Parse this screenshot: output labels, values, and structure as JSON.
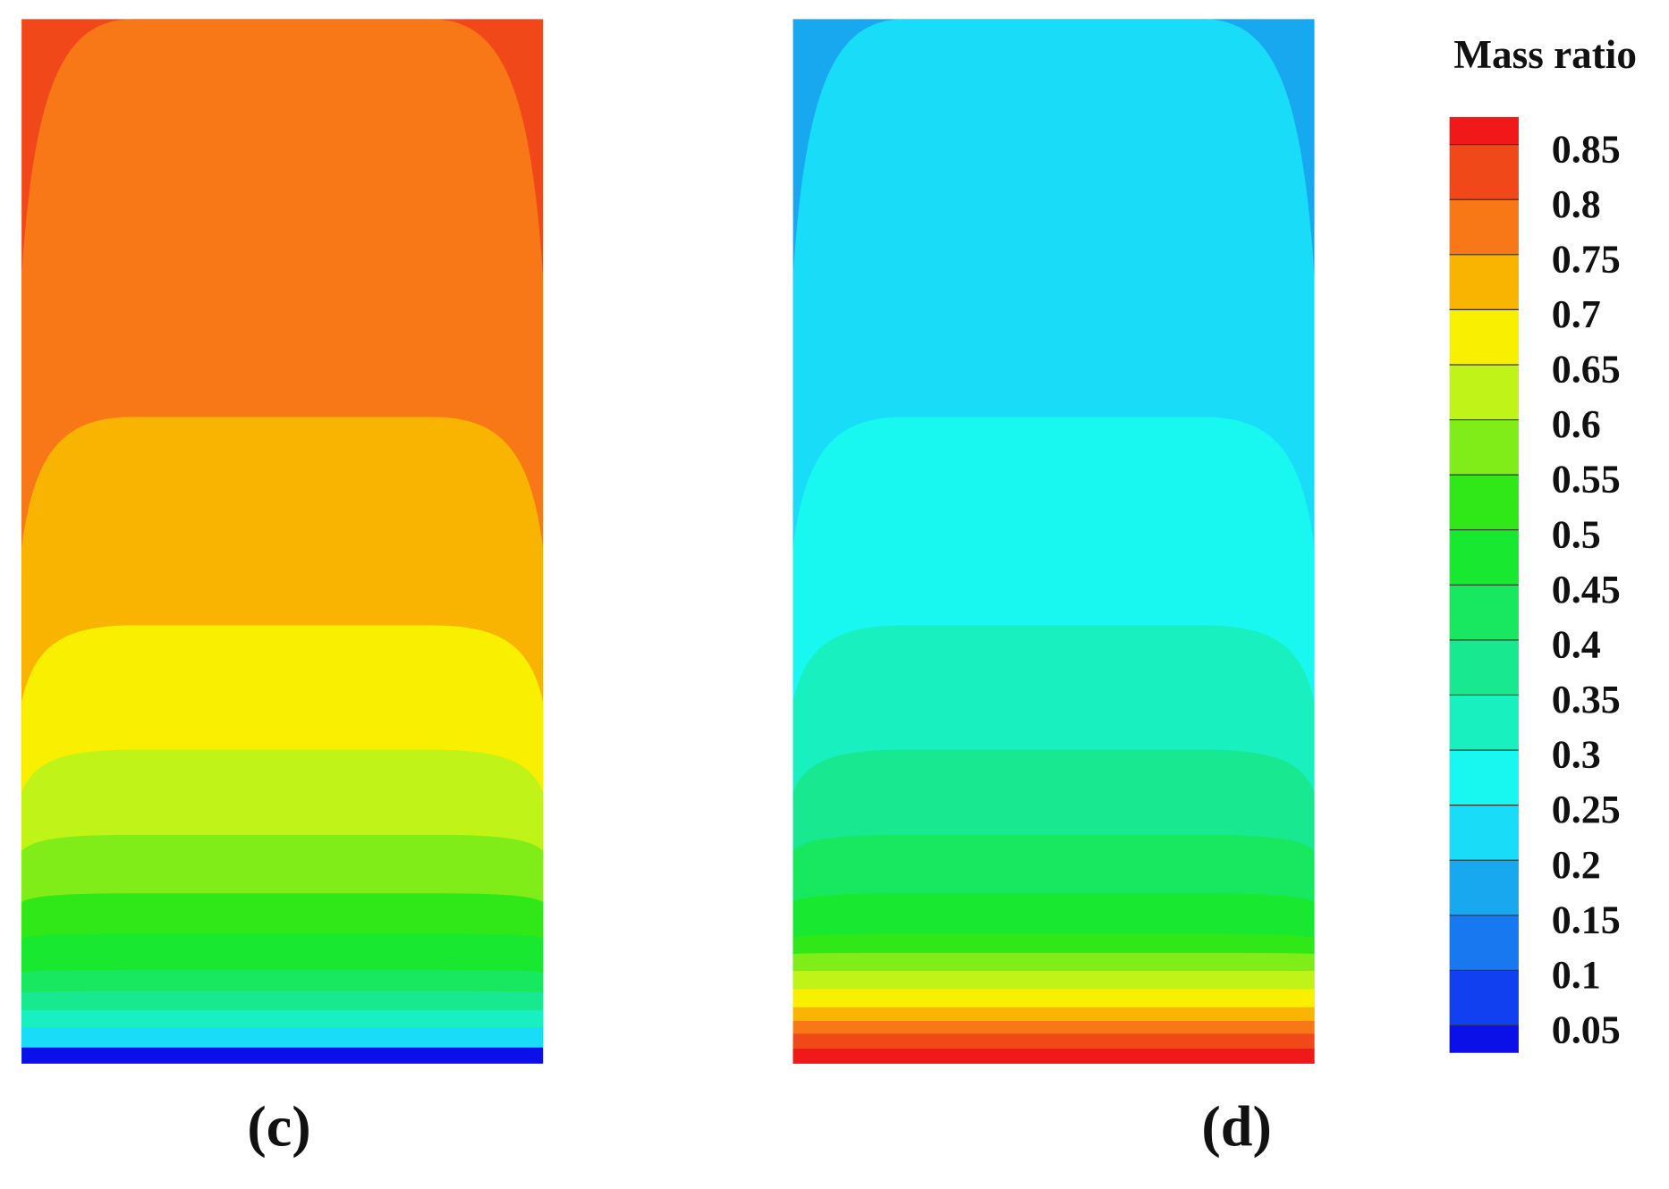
{
  "chart_data": [
    {
      "type": "contour",
      "label": "(c)",
      "levels": [
        0.8,
        0.75,
        0.7,
        0.65,
        0.6,
        0.55,
        0.5,
        0.45,
        0.4,
        0.35,
        0.3,
        0.2,
        0.025
      ]
    },
    {
      "type": "contour",
      "label": "(d)",
      "levels": [
        0.15,
        0.2,
        0.25,
        0.3,
        0.35,
        0.4,
        0.45,
        0.5,
        0.55,
        0.6,
        0.65,
        0.7,
        0.75,
        0.8,
        0.85
      ]
    }
  ],
  "colorbar": {
    "title": "Mass ratio",
    "clim": [
      0.025,
      0.875
    ],
    "ticks": [
      0.05,
      0.1,
      0.15,
      0.2,
      0.25,
      0.3,
      0.35,
      0.4,
      0.45,
      0.5,
      0.55,
      0.6,
      0.65,
      0.7,
      0.75,
      0.8,
      0.85
    ],
    "colors": [
      "#0b10e8",
      "#1040f0",
      "#1878f0",
      "#18a8f0",
      "#18dcf8",
      "#18f8f0",
      "#18f0c0",
      "#18e890",
      "#18e860",
      "#18e830",
      "#30e818",
      "#80ec18",
      "#c0f418",
      "#f8f000",
      "#f8b400",
      "#f87818",
      "#f04818",
      "#f01818"
    ]
  }
}
